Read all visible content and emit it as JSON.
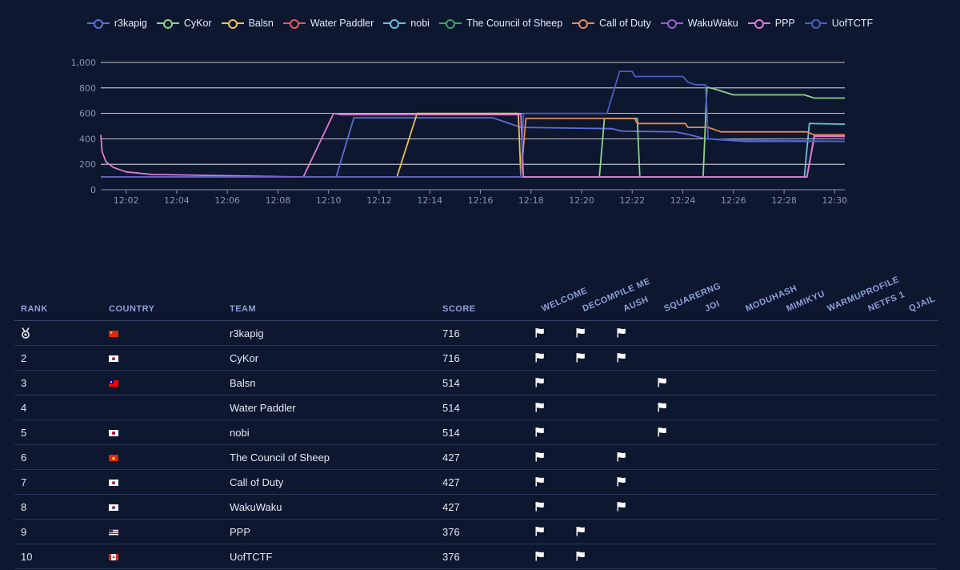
{
  "chart_data": {
    "type": "line",
    "xlabel": "",
    "ylabel": "",
    "ylim": [
      0,
      1000
    ],
    "xlim_minutes": [
      1.0,
      30.4
    ],
    "x_ticks": [
      "12:02",
      "12:04",
      "12:06",
      "12:08",
      "12:10",
      "12:12",
      "12:14",
      "12:16",
      "12:18",
      "12:20",
      "12:22",
      "12:24",
      "12:26",
      "12:28",
      "12:30"
    ],
    "y_ticks": [
      "0",
      "200",
      "400",
      "600",
      "800",
      "1,000"
    ],
    "series": [
      {
        "name": "r3kapig",
        "color": "#5b6fd6",
        "points": [
          [
            1.0,
            100
          ],
          [
            10.3,
            100
          ],
          [
            11.0,
            565
          ],
          [
            16.5,
            565
          ],
          [
            17.6,
            490
          ],
          [
            21.2,
            480
          ],
          [
            21.6,
            460
          ],
          [
            23.7,
            455
          ],
          [
            24.2,
            435
          ],
          [
            24.9,
            400
          ],
          [
            26.5,
            380
          ],
          [
            30.4,
            380
          ]
        ]
      },
      {
        "name": "CyKor",
        "color": "#8fd18a",
        "points": [
          [
            1.0,
            100
          ],
          [
            20.7,
            100
          ],
          [
            20.9,
            560
          ],
          [
            22.2,
            560
          ],
          [
            22.3,
            100
          ],
          [
            24.8,
            100
          ],
          [
            24.95,
            805
          ],
          [
            25.2,
            795
          ],
          [
            26.0,
            745
          ],
          [
            28.8,
            745
          ],
          [
            29.2,
            720
          ],
          [
            30.4,
            720
          ]
        ]
      },
      {
        "name": "Balsn",
        "color": "#e8c253",
        "points": [
          [
            1.0,
            100
          ],
          [
            12.7,
            100
          ],
          [
            13.5,
            600
          ],
          [
            17.5,
            600
          ],
          [
            17.6,
            100
          ],
          [
            28.9,
            100
          ],
          [
            29.2,
            430
          ],
          [
            30.4,
            430
          ]
        ]
      },
      {
        "name": "Water Paddler",
        "color": "#e25c5c",
        "points": [
          [
            1.0,
            100
          ],
          [
            28.9,
            100
          ],
          [
            29.2,
            430
          ],
          [
            30.4,
            430
          ]
        ]
      },
      {
        "name": "nobi",
        "color": "#6fbfd8",
        "points": [
          [
            1.0,
            100
          ],
          [
            28.8,
            100
          ],
          [
            29.0,
            520
          ],
          [
            30.4,
            515
          ]
        ]
      },
      {
        "name": "The Council of Sheep",
        "color": "#3fa06a",
        "points": [
          [
            1.0,
            100
          ],
          [
            28.9,
            100
          ],
          [
            29.2,
            420
          ],
          [
            30.4,
            420
          ]
        ]
      },
      {
        "name": "Call of Duty",
        "color": "#ea8a4f",
        "points": [
          [
            1.0,
            100
          ],
          [
            17.6,
            100
          ],
          [
            17.8,
            560
          ],
          [
            22.1,
            560
          ],
          [
            22.2,
            520
          ],
          [
            24.1,
            520
          ],
          [
            24.2,
            490
          ],
          [
            25.0,
            490
          ],
          [
            25.5,
            455
          ],
          [
            28.9,
            455
          ],
          [
            29.2,
            430
          ],
          [
            30.4,
            430
          ]
        ]
      },
      {
        "name": "WakuWaku",
        "color": "#9b5fcf",
        "points": [
          [
            1.0,
            100
          ],
          [
            28.9,
            100
          ],
          [
            29.2,
            420
          ],
          [
            30.4,
            420
          ]
        ]
      },
      {
        "name": "PPP",
        "color": "#e17ad3",
        "points": [
          [
            1.0,
            430
          ],
          [
            1.05,
            300
          ],
          [
            1.2,
            220
          ],
          [
            1.5,
            175
          ],
          [
            2.0,
            140
          ],
          [
            3.0,
            120
          ],
          [
            6.0,
            110
          ],
          [
            9.0,
            100
          ],
          [
            10.2,
            600
          ],
          [
            10.5,
            590
          ],
          [
            17.6,
            590
          ],
          [
            17.7,
            100
          ],
          [
            28.9,
            100
          ],
          [
            29.2,
            420
          ],
          [
            30.4,
            420
          ]
        ]
      },
      {
        "name": "UofTCTF",
        "color": "#4a5fbf",
        "points": [
          [
            1.0,
            100
          ],
          [
            17.6,
            100
          ],
          [
            17.7,
            600
          ],
          [
            20.6,
            600
          ],
          [
            21.0,
            600
          ],
          [
            21.5,
            930
          ],
          [
            22.0,
            930
          ],
          [
            22.1,
            890
          ],
          [
            24.0,
            890
          ],
          [
            24.2,
            845
          ],
          [
            24.5,
            825
          ],
          [
            24.9,
            825
          ],
          [
            25.0,
            400
          ],
          [
            26.5,
            390
          ],
          [
            30.4,
            380
          ]
        ]
      }
    ]
  },
  "table": {
    "headers": {
      "rank": "RANK",
      "country": "COUNTRY",
      "team": "TEAM",
      "score": "SCORE"
    },
    "challenges": [
      "WELCOME",
      "DECOMPILE ME",
      "AUSH",
      "SQUARERNG",
      "JOI",
      "MODUHASH",
      "MIMIKYU",
      "WARMUPROFILE",
      "NETFS 1",
      "QJAIL"
    ],
    "rows": [
      {
        "rank": "",
        "medal": true,
        "country": "china",
        "team": "r3kapig",
        "score": "716",
        "solves": [
          0,
          1,
          2
        ]
      },
      {
        "rank": "2",
        "country": "korea",
        "team": "CyKor",
        "score": "716",
        "solves": [
          0,
          1,
          2
        ]
      },
      {
        "rank": "3",
        "country": "taiwan",
        "team": "Balsn",
        "score": "514",
        "solves": [
          0,
          3
        ]
      },
      {
        "rank": "4",
        "country": "",
        "team": "Water Paddler",
        "score": "514",
        "solves": [
          0,
          3
        ]
      },
      {
        "rank": "5",
        "country": "japan",
        "team": "nobi",
        "score": "514",
        "solves": [
          0,
          3
        ]
      },
      {
        "rank": "6",
        "country": "vietnam",
        "team": "The Council of Sheep",
        "score": "427",
        "solves": [
          0,
          2
        ]
      },
      {
        "rank": "7",
        "country": "korea",
        "team": "Call of Duty",
        "score": "427",
        "solves": [
          0,
          2
        ]
      },
      {
        "rank": "8",
        "country": "korea",
        "team": "WakuWaku",
        "score": "427",
        "solves": [
          0,
          2
        ]
      },
      {
        "rank": "9",
        "country": "usa",
        "team": "PPP",
        "score": "376",
        "solves": [
          0,
          1
        ]
      },
      {
        "rank": "10",
        "country": "canada",
        "team": "UofTCTF",
        "score": "376",
        "solves": [
          0,
          1
        ]
      }
    ]
  },
  "icons": {
    "medal": "medal-icon",
    "solve": "flag-icon"
  }
}
